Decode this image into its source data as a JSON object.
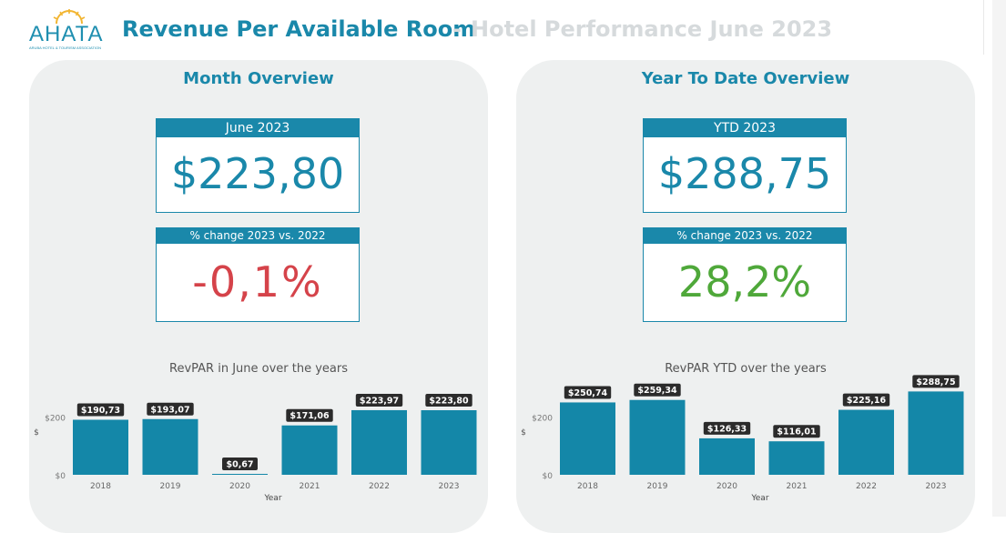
{
  "header": {
    "logo_text": "AHATA",
    "logo_subtext": "ARUBA HOTEL & TOURISM ASSOCIATION",
    "title_main": "Revenue Per Available Room",
    "title_separator": "-",
    "title_sub": "Hotel Performance June 2023"
  },
  "colors": {
    "brand": "#1a88aa",
    "bar": "#1487a8",
    "negative": "#d5434a",
    "positive": "#4fa83a",
    "panel_bg": "#eef0f0"
  },
  "month": {
    "title": "Month Overview",
    "kpi_label": "June 2023",
    "kpi_value": "$223,80",
    "change_label": "% change 2023 vs. 2022",
    "change_value": "-0,1%"
  },
  "ytd": {
    "title": "Year To Date Overview",
    "kpi_label": "YTD 2023",
    "kpi_value": "$288,75",
    "change_label": "% change 2023 vs. 2022",
    "change_value": "28,2%"
  },
  "chart_data": [
    {
      "type": "bar",
      "title": "RevPAR in June over the years",
      "xlabel": "Year",
      "ylabel": "$",
      "categories": [
        "2018",
        "2019",
        "2020",
        "2021",
        "2022",
        "2023"
      ],
      "values": [
        190.73,
        193.07,
        0.67,
        171.06,
        223.97,
        223.8
      ],
      "data_labels": [
        "$190,73",
        "$193,07",
        "$0,67",
        "$171,06",
        "$223,97",
        "$223,80"
      ],
      "y_ticks": [
        0,
        200
      ],
      "y_tick_labels": [
        "$0",
        "$200"
      ],
      "ylim": [
        0,
        290
      ],
      "grid": false,
      "legend": "none"
    },
    {
      "type": "bar",
      "title": "RevPAR YTD over the years",
      "xlabel": "Year",
      "ylabel": "$",
      "categories": [
        "2018",
        "2019",
        "2020",
        "2021",
        "2022",
        "2023"
      ],
      "values": [
        250.74,
        259.34,
        126.33,
        116.01,
        225.16,
        288.75
      ],
      "data_labels": [
        "$250,74",
        "$259,34",
        "$126,33",
        "$116,01",
        "$225,16",
        "$288,75"
      ],
      "y_ticks": [
        0,
        200
      ],
      "y_tick_labels": [
        "$0",
        "$200"
      ],
      "ylim": [
        0,
        290
      ],
      "grid": false,
      "legend": "none"
    }
  ]
}
